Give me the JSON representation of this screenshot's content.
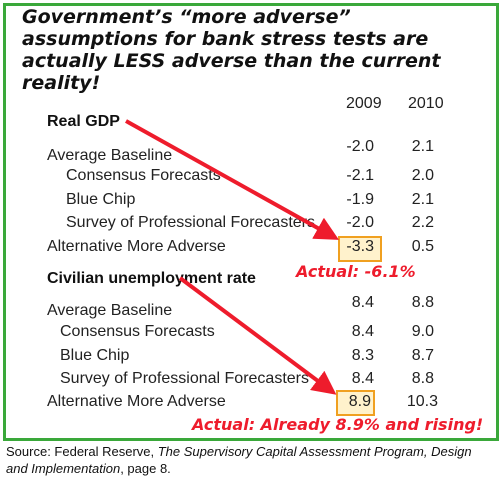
{
  "headline": "Government’s “more adverse” assumptions for bank stress tests are actually LESS adverse than the current reality!",
  "years": [
    "2009",
    "2010"
  ],
  "colors": {
    "border": "#3aa83a",
    "arrow": "#ee1c2c",
    "highlight": "#f0a020",
    "actual_text": "#ee1c2c"
  },
  "chart_data": {
    "type": "table",
    "columns": [
      "2009",
      "2010"
    ],
    "sections": [
      {
        "title": "Real GDP",
        "rows": [
          {
            "label": "Average Baseline",
            "values": [
              "-2.0",
              "2.1"
            ]
          },
          {
            "label": "Consensus Forecasts",
            "values": [
              "-2.1",
              "2.0"
            ]
          },
          {
            "label": "Blue Chip",
            "values": [
              "-1.9",
              "2.1"
            ]
          },
          {
            "label": "Survey of Professional Forecasters",
            "values": [
              "-2.0",
              "2.2"
            ]
          },
          {
            "label": "Alternative More Adverse",
            "values": [
              "-3.3",
              "0.5"
            ]
          }
        ],
        "annotation": "Actual: -6.1%"
      },
      {
        "title": "Civilian unemployment rate",
        "rows": [
          {
            "label": "Average Baseline",
            "values": [
              "8.4",
              "8.8"
            ]
          },
          {
            "label": "Consensus Forecasts",
            "values": [
              "8.4",
              "9.0"
            ]
          },
          {
            "label": "Blue Chip",
            "values": [
              "8.3",
              "8.7"
            ]
          },
          {
            "label": "Survey of Professional Forecasters",
            "values": [
              "8.4",
              "8.8"
            ]
          },
          {
            "label": "Alternative More Adverse",
            "values": [
              "8.9",
              "10.3"
            ]
          }
        ],
        "annotation": "Actual: Already 8.9% and rising!"
      }
    ]
  },
  "source": {
    "prefix": "Source: Federal Reserve, ",
    "title": "The Supervisory Capital Assessment Program, Design and Implementation",
    "suffix": ", page 8."
  }
}
